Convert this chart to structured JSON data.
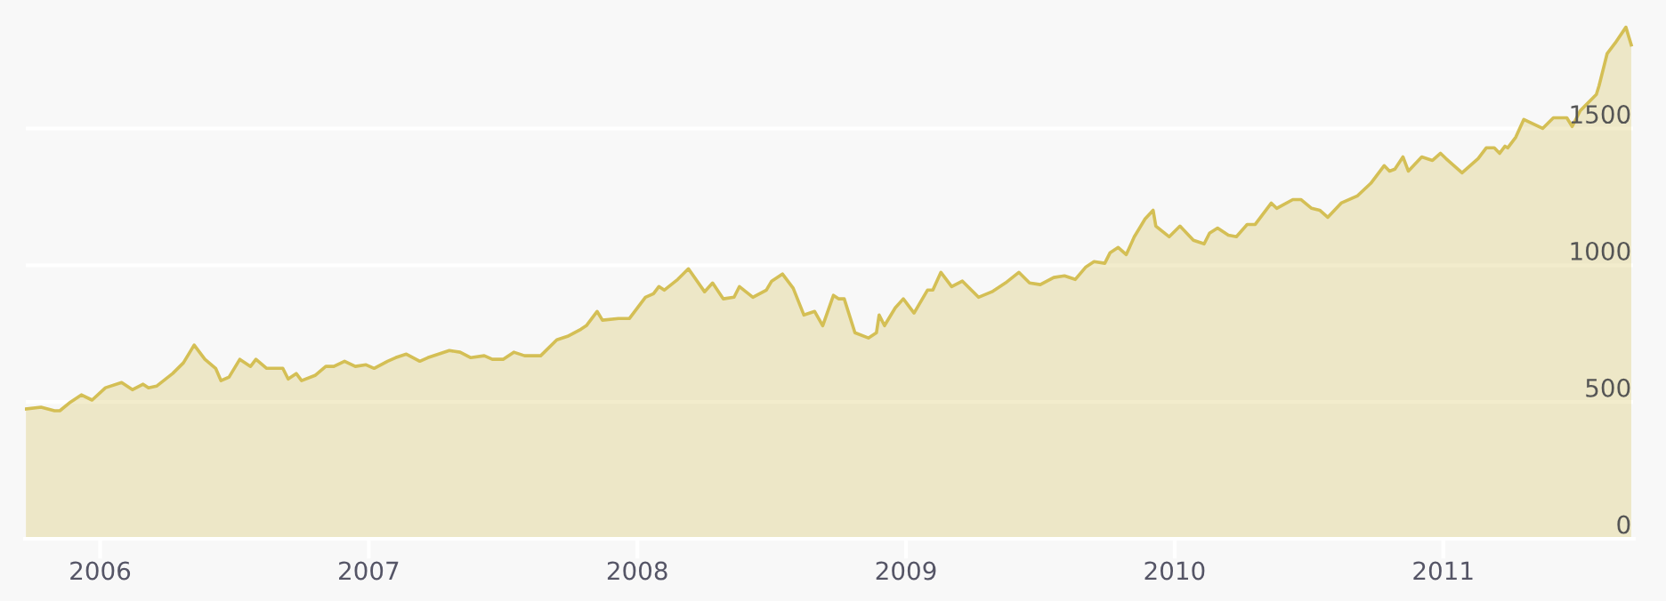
{
  "chart_data": {
    "type": "area",
    "xlim": [
      2005.72,
      2011.71
    ],
    "ylim": [
      0,
      1950
    ],
    "xticks": [
      2006,
      2007,
      2008,
      2009,
      2010,
      2011
    ],
    "yticks": [
      0,
      500,
      1000,
      1500
    ],
    "grid": "y",
    "legend": false,
    "series": [
      {
        "color": "#d4bf55",
        "x": [
          2005.72,
          2005.78,
          2005.83,
          2005.85,
          2005.89,
          2005.93,
          2005.97,
          2006.02,
          2006.08,
          2006.12,
          2006.16,
          2006.18,
          2006.21,
          2006.27,
          2006.31,
          2006.35,
          2006.39,
          2006.43,
          2006.45,
          2006.48,
          2006.52,
          2006.56,
          2006.58,
          2006.62,
          2006.68,
          2006.7,
          2006.73,
          2006.75,
          2006.8,
          2006.84,
          2006.87,
          2006.91,
          2006.95,
          2006.99,
          2007.02,
          2007.07,
          2007.1,
          2007.14,
          2007.19,
          2007.22,
          2007.26,
          2007.3,
          2007.34,
          2007.38,
          2007.43,
          2007.46,
          2007.5,
          2007.54,
          2007.58,
          2007.64,
          2007.7,
          2007.74,
          2007.79,
          2007.81,
          2007.85,
          2007.87,
          2007.93,
          2007.97,
          2008.03,
          2008.06,
          2008.08,
          2008.1,
          2008.15,
          2008.19,
          2008.25,
          2008.28,
          2008.32,
          2008.36,
          2008.38,
          2008.43,
          2008.48,
          2008.5,
          2008.54,
          2008.58,
          2008.62,
          2008.66,
          2008.69,
          2008.73,
          2008.75,
          2008.77,
          2008.81,
          2008.86,
          2008.89,
          2008.9,
          2008.92,
          2008.96,
          2008.99,
          2009.03,
          2009.08,
          2009.1,
          2009.13,
          2009.17,
          2009.21,
          2009.27,
          2009.32,
          2009.37,
          2009.42,
          2009.46,
          2009.5,
          2009.55,
          2009.59,
          2009.63,
          2009.67,
          2009.7,
          2009.74,
          2009.76,
          2009.79,
          2009.82,
          2009.85,
          2009.89,
          2009.92,
          2009.93,
          2009.98,
          2010.02,
          2010.07,
          2010.11,
          2010.13,
          2010.16,
          2010.2,
          2010.23,
          2010.27,
          2010.3,
          2010.33,
          2010.36,
          2010.38,
          2010.44,
          2010.47,
          2010.51,
          2010.54,
          2010.57,
          2010.62,
          2010.68,
          2010.73,
          2010.78,
          2010.8,
          2010.82,
          2010.85,
          2010.87,
          2010.92,
          2010.96,
          2010.99,
          2011.01,
          2011.07,
          2011.13,
          2011.16,
          2011.19,
          2011.21,
          2011.23,
          2011.24,
          2011.27,
          2011.3,
          2011.37,
          2011.41,
          2011.46,
          2011.48,
          2011.51,
          2011.57,
          2011.58,
          2011.61,
          2011.64,
          2011.68,
          2011.7
        ],
        "values": [
          474,
          481,
          468,
          468,
          500,
          526,
          507,
          552,
          571,
          545,
          565,
          552,
          558,
          604,
          643,
          708,
          656,
          623,
          578,
          591,
          656,
          630,
          656,
          623,
          623,
          584,
          604,
          578,
          597,
          630,
          630,
          649,
          630,
          636,
          623,
          649,
          662,
          675,
          649,
          662,
          675,
          688,
          682,
          662,
          669,
          656,
          656,
          682,
          669,
          669,
          727,
          740,
          766,
          779,
          831,
          799,
          805,
          805,
          883,
          896,
          922,
          909,
          948,
          987,
          903,
          935,
          877,
          883,
          922,
          883,
          909,
          942,
          968,
          916,
          818,
          831,
          779,
          890,
          877,
          877,
          753,
          734,
          753,
          818,
          779,
          844,
          877,
          825,
          909,
          909,
          974,
          922,
          942,
          883,
          903,
          935,
          974,
          935,
          929,
          955,
          961,
          948,
          994,
          1013,
          1007,
          1046,
          1065,
          1039,
          1104,
          1169,
          1201,
          1143,
          1104,
          1143,
          1091,
          1078,
          1117,
          1136,
          1110,
          1104,
          1149,
          1149,
          1188,
          1227,
          1208,
          1240,
          1240,
          1208,
          1201,
          1175,
          1227,
          1253,
          1299,
          1364,
          1344,
          1351,
          1396,
          1344,
          1396,
          1383,
          1409,
          1390,
          1338,
          1390,
          1429,
          1429,
          1409,
          1435,
          1429,
          1468,
          1533,
          1500,
          1539,
          1539,
          1507,
          1565,
          1624,
          1656,
          1773,
          1812,
          1870,
          1805
        ]
      }
    ]
  }
}
